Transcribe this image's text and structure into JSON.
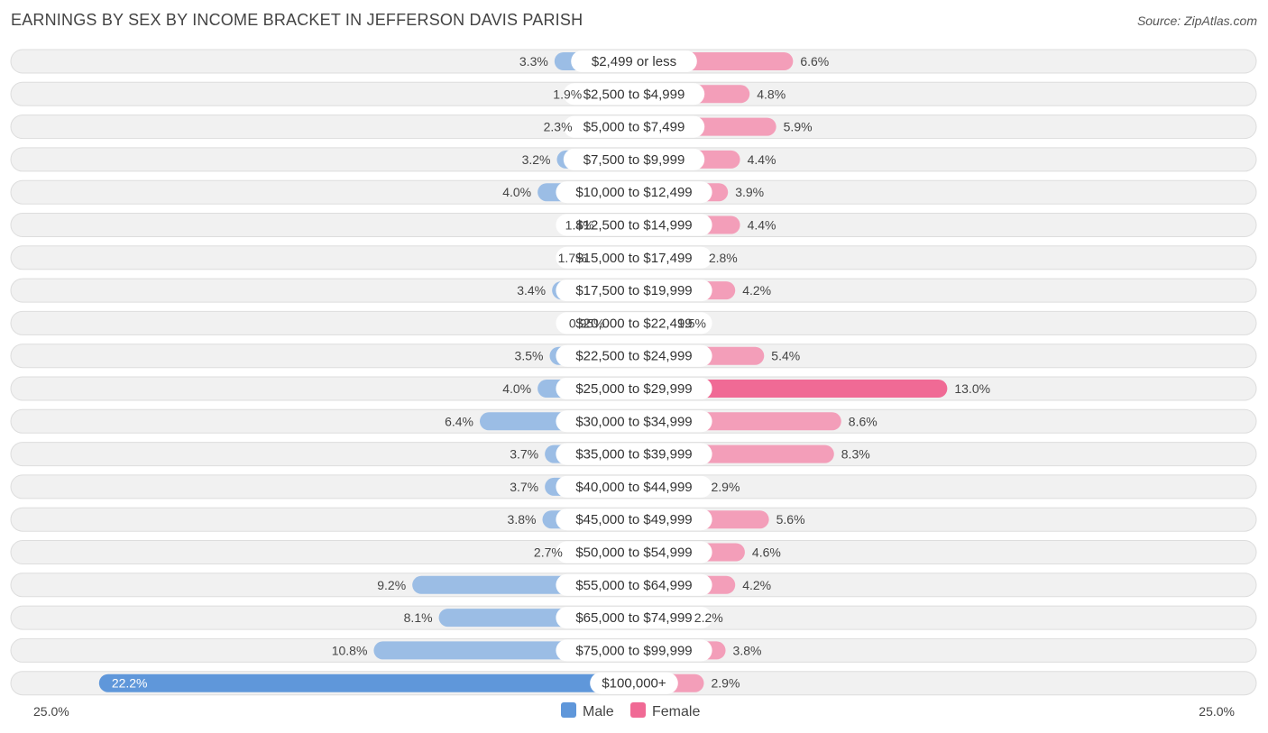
{
  "title": "EARNINGS BY SEX BY INCOME BRACKET IN JEFFERSON DAVIS PARISH",
  "source": "Source: ZipAtlas.com",
  "colors": {
    "male": "#7aa9e0",
    "male_strong": "#5f97da",
    "female": "#f48aab",
    "female_strong": "#f06a95",
    "row_bg": "#f1f1f1",
    "row_border": "#dddddd"
  },
  "chart_data": {
    "type": "bar",
    "orientation": "horizontal-diverging",
    "categories": [
      "$2,499 or less",
      "$2,500 to $4,999",
      "$5,000 to $7,499",
      "$7,500 to $9,999",
      "$10,000 to $12,499",
      "$12,500 to $14,999",
      "$15,000 to $17,499",
      "$17,500 to $19,999",
      "$20,000 to $22,499",
      "$22,500 to $24,999",
      "$25,000 to $29,999",
      "$30,000 to $34,999",
      "$35,000 to $39,999",
      "$40,000 to $44,999",
      "$45,000 to $49,999",
      "$50,000 to $54,999",
      "$55,000 to $64,999",
      "$65,000 to $74,999",
      "$75,000 to $99,999",
      "$100,000+"
    ],
    "series": [
      {
        "name": "Male",
        "values": [
          3.3,
          1.9,
          2.3,
          3.2,
          4.0,
          1.4,
          1.7,
          3.4,
          0.95,
          3.5,
          4.0,
          6.4,
          3.7,
          3.7,
          3.8,
          2.7,
          9.2,
          8.1,
          10.8,
          22.2
        ],
        "labels": [
          "3.3%",
          "1.9%",
          "2.3%",
          "3.2%",
          "4.0%",
          "1.4%",
          "1.7%",
          "3.4%",
          "0.95%",
          "3.5%",
          "4.0%",
          "6.4%",
          "3.7%",
          "3.7%",
          "3.8%",
          "2.7%",
          "9.2%",
          "8.1%",
          "10.8%",
          "22.2%"
        ]
      },
      {
        "name": "Female",
        "values": [
          6.6,
          4.8,
          5.9,
          4.4,
          3.9,
          4.4,
          2.8,
          4.2,
          1.5,
          5.4,
          13.0,
          8.6,
          8.3,
          2.9,
          5.6,
          4.6,
          4.2,
          2.2,
          3.8,
          2.9
        ],
        "labels": [
          "6.6%",
          "4.8%",
          "5.9%",
          "4.4%",
          "3.9%",
          "4.4%",
          "2.8%",
          "4.2%",
          "1.5%",
          "5.4%",
          "13.0%",
          "8.6%",
          "8.3%",
          "2.9%",
          "5.6%",
          "4.6%",
          "4.2%",
          "2.2%",
          "3.8%",
          "2.9%"
        ]
      }
    ],
    "xlim": [
      -25,
      25
    ],
    "axis_labels": {
      "left": "25.0%",
      "right": "25.0%"
    },
    "legend": {
      "position": "bottom-center",
      "items": [
        "Male",
        "Female"
      ]
    }
  }
}
